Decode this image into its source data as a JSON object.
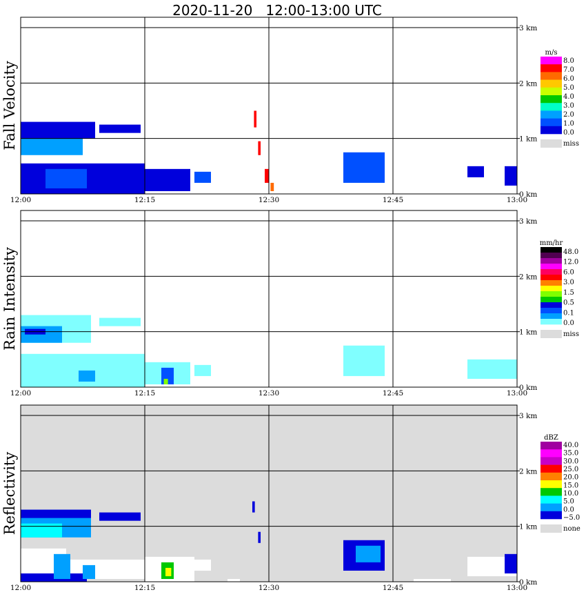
{
  "chart_data": {
    "type": "heatmap",
    "title": "2020-11-20   12:00-13:00 UTC",
    "x_ticks": [
      "12:00",
      "12:15",
      "12:30",
      "12:45",
      "13:00"
    ],
    "y_ticks": [
      "0 km",
      "1 km",
      "2 km",
      "3 km"
    ],
    "x_range_minutes": [
      0,
      60
    ],
    "y_range_km": [
      0,
      3.0
    ],
    "grid": true,
    "panels": [
      {
        "name": "Fall Velocity",
        "unit": "m/s",
        "background": "#ffffff",
        "legend": {
          "labels": [
            "8.0",
            "7.0",
            "6.0",
            "5.0",
            "4.0",
            "3.0",
            "2.0",
            "1.0",
            "0.0"
          ],
          "colors": [
            "#ff00ff",
            "#ff0000",
            "#ff6a00",
            "#ffc800",
            "#c8ff00",
            "#00c800",
            "#00ffc8",
            "#00a0ff",
            "#0050ff",
            "#0000dc"
          ],
          "miss_label": "miss",
          "miss_color": "#dcdcdc"
        },
        "regions": [
          {
            "t": [
              0,
              9
            ],
            "z": [
              1.0,
              1.3
            ],
            "color": "#0000dc"
          },
          {
            "t": [
              0,
              7.5
            ],
            "z": [
              0.7,
              1.0
            ],
            "color": "#00a0ff"
          },
          {
            "t": [
              0,
              15
            ],
            "z": [
              0.0,
              0.55
            ],
            "color": "#0000dc"
          },
          {
            "t": [
              3,
              8
            ],
            "z": [
              0.1,
              0.45
            ],
            "color": "#0050ff"
          },
          {
            "t": [
              9.5,
              14.5
            ],
            "z": [
              1.1,
              1.25
            ],
            "color": "#0000dc"
          },
          {
            "t": [
              15,
              20.5
            ],
            "z": [
              0.05,
              0.45
            ],
            "color": "#0000dc"
          },
          {
            "t": [
              21,
              23
            ],
            "z": [
              0.2,
              0.4
            ],
            "color": "#0050ff"
          },
          {
            "t": [
              28.2,
              28.5
            ],
            "z": [
              1.2,
              1.5
            ],
            "color": "#ff0000"
          },
          {
            "t": [
              28.7,
              29
            ],
            "z": [
              0.7,
              0.95
            ],
            "color": "#ff0000"
          },
          {
            "t": [
              29.5,
              30
            ],
            "z": [
              0.2,
              0.45
            ],
            "color": "#ff0000"
          },
          {
            "t": [
              30.2,
              30.6
            ],
            "z": [
              0.05,
              0.2
            ],
            "color": "#ff6a00"
          },
          {
            "t": [
              39,
              44
            ],
            "z": [
              0.2,
              0.75
            ],
            "color": "#0050ff"
          },
          {
            "t": [
              54,
              56
            ],
            "z": [
              0.3,
              0.5
            ],
            "color": "#0000dc"
          },
          {
            "t": [
              58.5,
              60
            ],
            "z": [
              0.15,
              0.5
            ],
            "color": "#0000dc"
          }
        ]
      },
      {
        "name": "Rain Intensity",
        "unit": "mm/hr",
        "background": "#ffffff",
        "legend": {
          "labels": [
            "48.0",
            "12.0",
            "6.0",
            "3.0",
            "1.5",
            "0.5",
            "0.1",
            "0.0"
          ],
          "colors": [
            "#000000",
            "#500050",
            "#a000a0",
            "#ff00ff",
            "#ff0060",
            "#ff0000",
            "#ff8000",
            "#ffff00",
            "#80ff00",
            "#00c800",
            "#0000dc",
            "#0050ff",
            "#00a0ff",
            "#80ffff"
          ],
          "miss_label": "miss",
          "miss_color": "#dcdcdc"
        },
        "regions": [
          {
            "t": [
              0,
              8.5
            ],
            "z": [
              0.8,
              1.3
            ],
            "color": "#80ffff"
          },
          {
            "t": [
              0,
              5
            ],
            "z": [
              0.8,
              1.1
            ],
            "color": "#00a0ff"
          },
          {
            "t": [
              0.5,
              3
            ],
            "z": [
              0.95,
              1.05
            ],
            "color": "#0000dc"
          },
          {
            "t": [
              9.5,
              14.5
            ],
            "z": [
              1.1,
              1.25
            ],
            "color": "#80ffff"
          },
          {
            "t": [
              0,
              15
            ],
            "z": [
              0.0,
              0.6
            ],
            "color": "#80ffff"
          },
          {
            "t": [
              7,
              9
            ],
            "z": [
              0.1,
              0.3
            ],
            "color": "#00a0ff"
          },
          {
            "t": [
              15,
              20.5
            ],
            "z": [
              0.05,
              0.45
            ],
            "color": "#80ffff"
          },
          {
            "t": [
              17,
              18.5
            ],
            "z": [
              0.05,
              0.35
            ],
            "color": "#0050ff"
          },
          {
            "t": [
              17.3,
              17.8
            ],
            "z": [
              0.05,
              0.15
            ],
            "color": "#80ff00"
          },
          {
            "t": [
              21,
              23
            ],
            "z": [
              0.2,
              0.4
            ],
            "color": "#80ffff"
          },
          {
            "t": [
              39,
              44
            ],
            "z": [
              0.2,
              0.75
            ],
            "color": "#80ffff"
          },
          {
            "t": [
              54,
              60
            ],
            "z": [
              0.15,
              0.5
            ],
            "color": "#80ffff"
          }
        ]
      },
      {
        "name": "Reflectivity",
        "unit": "dBZ",
        "background": "#dcdcdc",
        "legend": {
          "labels": [
            "40.0",
            "35.0",
            "30.0",
            "25.0",
            "20.0",
            "15.0",
            "10.0",
            "5.0",
            "0.0",
            "−5.0"
          ],
          "colors": [
            "#a000a0",
            "#ff00ff",
            "#c800c8",
            "#ff0000",
            "#ff8000",
            "#ffff00",
            "#00c800",
            "#00ffff",
            "#00a0ff",
            "#0000dc"
          ],
          "miss_label": "none",
          "miss_color": "#dcdcdc"
        },
        "regions": [
          {
            "t": [
              0,
              8.5
            ],
            "z": [
              0.8,
              1.3
            ],
            "color": "#00a0ff"
          },
          {
            "t": [
              0,
              5
            ],
            "z": [
              0.8,
              1.05
            ],
            "color": "#00ffff"
          },
          {
            "t": [
              0,
              8.5
            ],
            "z": [
              1.15,
              1.3
            ],
            "color": "#0000dc"
          },
          {
            "t": [
              9.5,
              14.5
            ],
            "z": [
              1.1,
              1.25
            ],
            "color": "#0000dc"
          },
          {
            "t": [
              0,
              5.5
            ],
            "z": [
              0.15,
              0.6
            ],
            "color": "#ffffff"
          },
          {
            "t": [
              5.5,
              15
            ],
            "z": [
              0.05,
              0.4
            ],
            "color": "#ffffff"
          },
          {
            "t": [
              0,
              8
            ],
            "z": [
              0.0,
              0.15
            ],
            "color": "#0000dc"
          },
          {
            "t": [
              4,
              6
            ],
            "z": [
              0.05,
              0.5
            ],
            "color": "#00a0ff"
          },
          {
            "t": [
              7.5,
              9
            ],
            "z": [
              0.05,
              0.3
            ],
            "color": "#00a0ff"
          },
          {
            "t": [
              15,
              21
            ],
            "z": [
              0.0,
              0.45
            ],
            "color": "#ffffff"
          },
          {
            "t": [
              17,
              18.5
            ],
            "z": [
              0.05,
              0.35
            ],
            "color": "#00c800"
          },
          {
            "t": [
              17.5,
              18.2
            ],
            "z": [
              0.1,
              0.25
            ],
            "color": "#ffff00"
          },
          {
            "t": [
              21,
              23
            ],
            "z": [
              0.2,
              0.4
            ],
            "color": "#ffffff"
          },
          {
            "t": [
              28,
              28.3
            ],
            "z": [
              1.25,
              1.45
            ],
            "color": "#0000dc"
          },
          {
            "t": [
              28.7,
              29
            ],
            "z": [
              0.7,
              0.9
            ],
            "color": "#0000dc"
          },
          {
            "t": [
              39,
              44
            ],
            "z": [
              0.2,
              0.75
            ],
            "color": "#0000dc"
          },
          {
            "t": [
              40.5,
              43.5
            ],
            "z": [
              0.35,
              0.65
            ],
            "color": "#00a0ff"
          },
          {
            "t": [
              25,
              26.5
            ],
            "z": [
              0.0,
              0.05
            ],
            "color": "#ffffff"
          },
          {
            "t": [
              47.5,
              52
            ],
            "z": [
              0.0,
              0.05
            ],
            "color": "#ffffff"
          },
          {
            "t": [
              54,
              60
            ],
            "z": [
              0.1,
              0.45
            ],
            "color": "#ffffff"
          },
          {
            "t": [
              58.5,
              60
            ],
            "z": [
              0.15,
              0.5
            ],
            "color": "#0000dc"
          }
        ]
      }
    ]
  }
}
